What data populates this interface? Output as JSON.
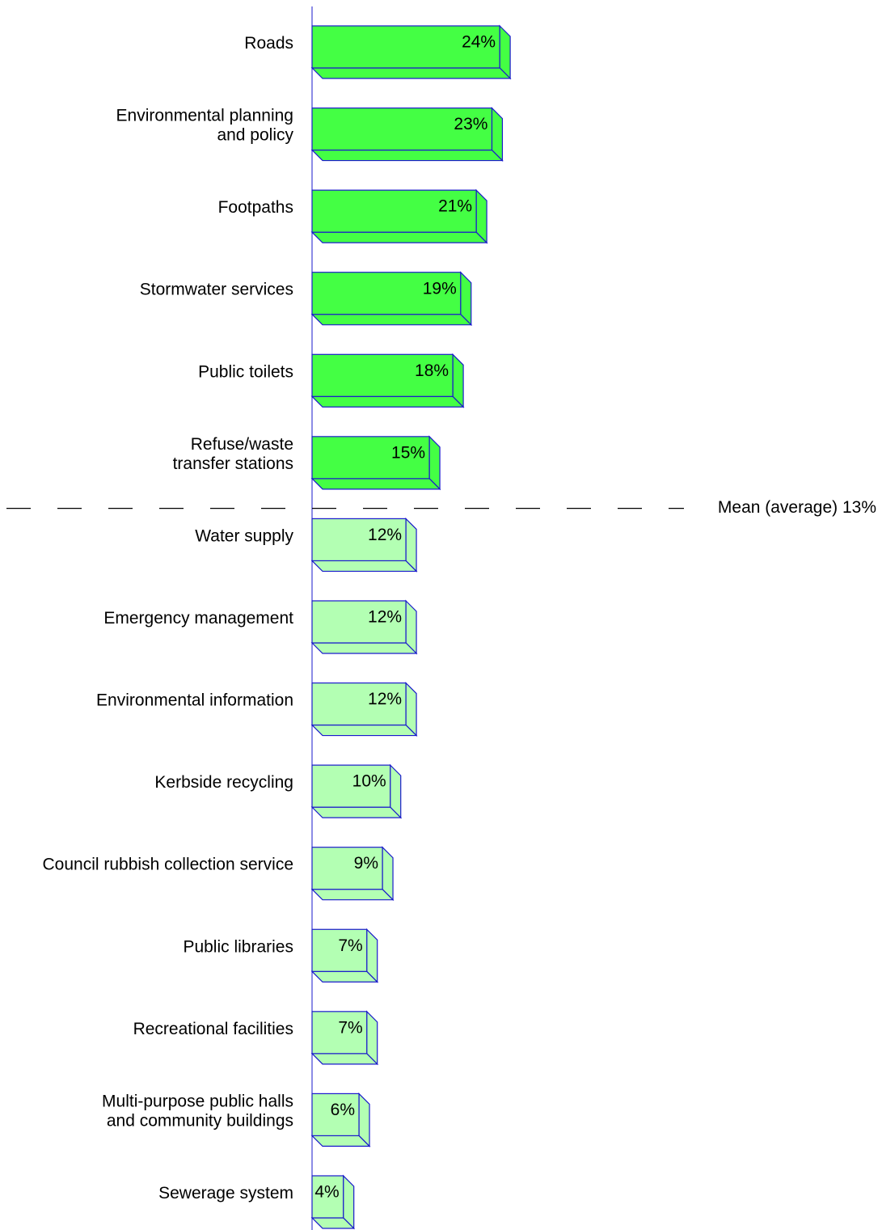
{
  "chart_data": {
    "type": "bar",
    "orientation": "horizontal",
    "categories": [
      "Roads",
      "Environmental planning\nand policy",
      "Footpaths",
      "Stormwater services",
      "Public toilets",
      "Refuse/waste\ntransfer stations",
      "Water supply",
      "Emergency management",
      "Environmental information",
      "Kerbside recycling",
      "Council rubbish collection service",
      "Public libraries",
      "Recreational facilities",
      "Multi-purpose public halls\nand community buildings",
      "Sewerage system"
    ],
    "values": [
      24,
      23,
      21,
      19,
      18,
      15,
      12,
      12,
      12,
      10,
      9,
      7,
      7,
      6,
      4
    ],
    "value_labels": [
      "24%",
      "23%",
      "21%",
      "19%",
      "18%",
      "15%",
      "12%",
      "12%",
      "12%",
      "10%",
      "9%",
      "7%",
      "7%",
      "6%",
      "4%"
    ],
    "mean": 13,
    "mean_label": "Mean (average) 13%",
    "color_above": "#44ff44",
    "color_below": "#b3ffb3",
    "edge_color": "#1a1acc",
    "xlim": [
      0,
      70
    ]
  }
}
